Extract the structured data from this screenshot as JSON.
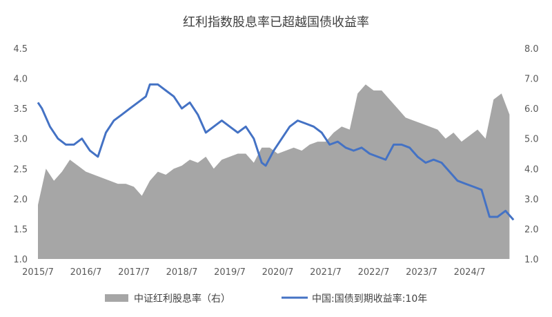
{
  "chart_data": {
    "type": "area+line",
    "title": "红利指数股息率已超越国债收益率",
    "x_ticks": [
      "2015/7",
      "2016/7",
      "2017/7",
      "2018/7",
      "2019/7",
      "2020/7",
      "2021/7",
      "2022/7",
      "2023/7",
      "2024/7"
    ],
    "y_left": {
      "ticks": [
        "1.0",
        "1.5",
        "2.0",
        "2.5",
        "3.0",
        "3.5",
        "4.0",
        "4.5"
      ],
      "range": [
        1.0,
        4.5
      ]
    },
    "y_right": {
      "ticks": [
        "1.0",
        "2.0",
        "3.0",
        "4.0",
        "5.0",
        "6.0",
        "7.0",
        "8.0"
      ],
      "range": [
        1.0,
        8.0
      ]
    },
    "series": [
      {
        "name": "中证红利股息率（右）",
        "kind": "area",
        "axis": "right",
        "color": "#a6a6a6",
        "x": [
          "2015-07",
          "2015-09",
          "2015-11",
          "2016-01",
          "2016-03",
          "2016-05",
          "2016-07",
          "2016-09",
          "2016-11",
          "2017-01",
          "2017-03",
          "2017-05",
          "2017-07",
          "2017-09",
          "2017-11",
          "2018-01",
          "2018-03",
          "2018-05",
          "2018-07",
          "2018-09",
          "2018-11",
          "2019-01",
          "2019-03",
          "2019-05",
          "2019-07",
          "2019-09",
          "2019-11",
          "2020-01",
          "2020-03",
          "2020-05",
          "2020-07",
          "2020-09",
          "2020-11",
          "2021-01",
          "2021-03",
          "2021-05",
          "2021-07",
          "2021-09",
          "2021-11",
          "2022-01",
          "2022-03",
          "2022-05",
          "2022-07",
          "2022-09",
          "2022-11",
          "2023-01",
          "2023-03",
          "2023-05",
          "2023-07",
          "2023-09",
          "2023-11",
          "2024-01",
          "2024-03",
          "2024-05",
          "2024-07",
          "2024-09",
          "2024-11",
          "2025-01",
          "2025-03",
          "2025-05"
        ],
        "values": [
          2.8,
          4.0,
          3.6,
          3.9,
          4.3,
          4.1,
          3.9,
          3.8,
          3.7,
          3.6,
          3.5,
          3.5,
          3.4,
          3.1,
          3.6,
          3.9,
          3.8,
          4.0,
          4.1,
          4.3,
          4.2,
          4.4,
          4.0,
          4.3,
          4.4,
          4.5,
          4.5,
          4.2,
          4.7,
          4.7,
          4.5,
          4.6,
          4.7,
          4.6,
          4.8,
          4.9,
          4.9,
          5.2,
          5.4,
          5.3,
          6.5,
          6.8,
          6.6,
          6.6,
          6.3,
          6.0,
          5.7,
          5.6,
          5.5,
          5.4,
          5.3,
          5.0,
          5.2,
          4.9,
          5.1,
          5.3,
          5.0,
          6.3,
          6.5,
          5.8
        ]
      },
      {
        "name": "中国:国债到期收益率:10年",
        "kind": "line",
        "axis": "left",
        "color": "#4472c4",
        "x": [
          "2015-07",
          "2015-08",
          "2015-10",
          "2015-12",
          "2016-02",
          "2016-04",
          "2016-06",
          "2016-08",
          "2016-10",
          "2016-12",
          "2017-02",
          "2017-04",
          "2017-06",
          "2017-08",
          "2017-10",
          "2017-11",
          "2018-01",
          "2018-03",
          "2018-05",
          "2018-07",
          "2018-09",
          "2018-11",
          "2019-01",
          "2019-03",
          "2019-05",
          "2019-07",
          "2019-09",
          "2019-11",
          "2020-01",
          "2020-03",
          "2020-04",
          "2020-06",
          "2020-08",
          "2020-10",
          "2020-12",
          "2021-02",
          "2021-04",
          "2021-06",
          "2021-08",
          "2021-10",
          "2021-12",
          "2022-02",
          "2022-04",
          "2022-06",
          "2022-08",
          "2022-10",
          "2022-12",
          "2023-02",
          "2023-04",
          "2023-06",
          "2023-08",
          "2023-10",
          "2023-12",
          "2024-02",
          "2024-04",
          "2024-06",
          "2024-08",
          "2024-10",
          "2024-12",
          "2025-02",
          "2025-04",
          "2025-06"
        ],
        "values": [
          3.6,
          3.5,
          3.2,
          3.0,
          2.9,
          2.9,
          3.0,
          2.8,
          2.7,
          3.1,
          3.3,
          3.4,
          3.5,
          3.6,
          3.7,
          3.9,
          3.9,
          3.8,
          3.7,
          3.5,
          3.6,
          3.4,
          3.1,
          3.2,
          3.3,
          3.2,
          3.1,
          3.2,
          3.0,
          2.6,
          2.55,
          2.8,
          3.0,
          3.2,
          3.3,
          3.25,
          3.2,
          3.1,
          2.9,
          2.95,
          2.85,
          2.8,
          2.85,
          2.75,
          2.7,
          2.65,
          2.9,
          2.9,
          2.85,
          2.7,
          2.6,
          2.65,
          2.6,
          2.45,
          2.3,
          2.25,
          2.2,
          2.15,
          1.7,
          1.7,
          1.8,
          1.65
        ]
      }
    ],
    "legend_position": "bottom",
    "grid": false
  }
}
